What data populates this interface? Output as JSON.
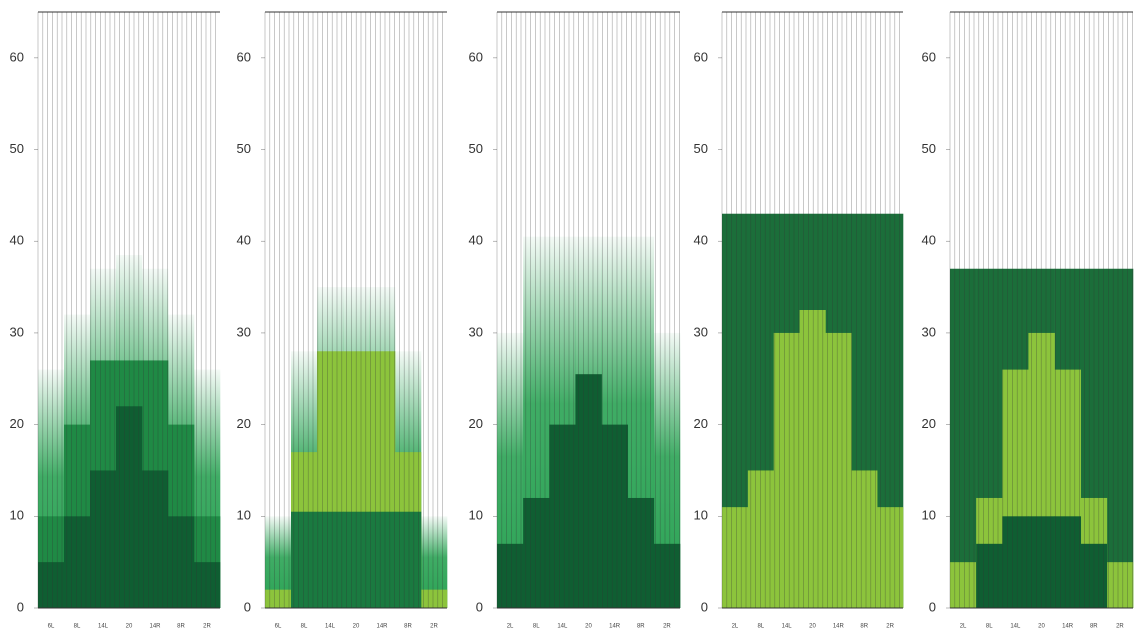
{
  "chart_data": [
    {
      "type": "step-area",
      "ylim": [
        0,
        65
      ],
      "yticks": [
        0,
        10,
        20,
        30,
        40,
        50,
        60
      ],
      "categories": [
        "6L",
        "8L",
        "14L",
        "20",
        "14R",
        "8R",
        "2R"
      ],
      "series": [
        {
          "color": "#2aa354",
          "gradient": true,
          "values": [
            26,
            32,
            37,
            38.5,
            37,
            32,
            26
          ]
        },
        {
          "color": "#1f8a45",
          "gradient": false,
          "values": [
            10,
            20,
            27,
            27,
            27,
            20,
            10
          ]
        },
        {
          "color": "#0f5e32",
          "gradient": false,
          "values": [
            5,
            10,
            15,
            22,
            15,
            10,
            5
          ]
        }
      ]
    },
    {
      "type": "step-area",
      "ylim": [
        0,
        65
      ],
      "yticks": [
        0,
        10,
        20,
        30,
        40,
        50,
        60
      ],
      "categories": [
        "6L",
        "8L",
        "14L",
        "20",
        "14R",
        "8R",
        "2R"
      ],
      "series": [
        {
          "color": "#2aa354",
          "gradient": true,
          "values": [
            10,
            28,
            35,
            35,
            35,
            28,
            10
          ]
        },
        {
          "color": "#8cc43c",
          "gradient": false,
          "values": [
            2,
            17,
            28,
            28,
            28,
            17,
            2
          ]
        },
        {
          "color": "#1a7a40",
          "gradient": false,
          "values": [
            0,
            10.5,
            10.5,
            10.5,
            10.5,
            10.5,
            0
          ]
        }
      ]
    },
    {
      "type": "step-area",
      "ylim": [
        0,
        65
      ],
      "yticks": [
        0,
        10,
        20,
        30,
        40,
        50,
        60
      ],
      "categories": [
        "2L",
        "8L",
        "14L",
        "20",
        "14R",
        "8R",
        "2R"
      ],
      "series": [
        {
          "color": "#2aa354",
          "gradient": true,
          "values": [
            30,
            40.5,
            40.5,
            40.5,
            40.5,
            40.5,
            30
          ]
        },
        {
          "color": "#0f5e32",
          "gradient": false,
          "values": [
            7,
            12,
            20,
            25.5,
            20,
            12,
            7
          ]
        }
      ]
    },
    {
      "type": "step-area",
      "ylim": [
        0,
        65
      ],
      "yticks": [
        0,
        10,
        20,
        30,
        40,
        50,
        60
      ],
      "categories": [
        "2L",
        "8L",
        "14L",
        "20",
        "14R",
        "8R",
        "2R"
      ],
      "series": [
        {
          "color": "#1b6e3a",
          "gradient": false,
          "values": [
            43,
            43,
            43,
            43,
            43,
            43,
            43
          ]
        },
        {
          "color": "#8cc43c",
          "gradient": false,
          "values": [
            11,
            15,
            30,
            32.5,
            30,
            15,
            11
          ]
        }
      ]
    },
    {
      "type": "step-area",
      "ylim": [
        0,
        65
      ],
      "yticks": [
        0,
        10,
        20,
        30,
        40,
        50,
        60
      ],
      "categories": [
        "2L",
        "8L",
        "14L",
        "20",
        "14R",
        "8R",
        "2R"
      ],
      "series": [
        {
          "color": "#1b6e3a",
          "gradient": false,
          "values": [
            37,
            37,
            37,
            37,
            37,
            37,
            37
          ]
        },
        {
          "color": "#8cc43c",
          "gradient": false,
          "values": [
            5,
            12,
            26,
            30,
            26,
            12,
            5
          ]
        },
        {
          "color": "#0f5e32",
          "gradient": false,
          "values": [
            0,
            7,
            10,
            10,
            10,
            7,
            0
          ]
        }
      ]
    }
  ]
}
